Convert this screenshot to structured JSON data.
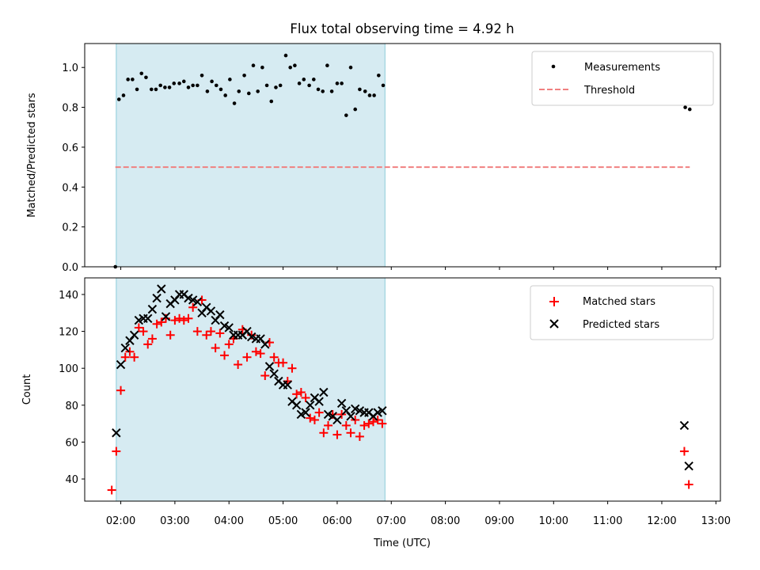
{
  "chart_data": [
    {
      "type": "scatter",
      "title": "Flux total observing time = 4.92 h",
      "xlabel": "",
      "ylabel": "Matched/Predicted stars",
      "xlim": [
        "01:20",
        "13:05"
      ],
      "ylim": [
        0,
        1.12
      ],
      "yticks": [
        "0.0",
        "0.2",
        "0.4",
        "0.6",
        "0.8",
        "1.0"
      ],
      "grid": false,
      "legend_position": "top-right",
      "shaded_interval": [
        "01:55",
        "06:53"
      ],
      "series": [
        {
          "name": "Measurements",
          "marker": "dot",
          "color": "#000000",
          "x": [
            "01:54",
            "01:58",
            "02:03",
            "02:08",
            "02:13",
            "02:18",
            "02:23",
            "02:28",
            "02:34",
            "02:39",
            "02:44",
            "02:49",
            "02:54",
            "02:59",
            "03:05",
            "03:10",
            "03:15",
            "03:20",
            "03:25",
            "03:30",
            "03:36",
            "03:41",
            "03:46",
            "03:51",
            "03:56",
            "04:01",
            "04:06",
            "04:11",
            "04:17",
            "04:22",
            "04:27",
            "04:32",
            "04:37",
            "04:42",
            "04:47",
            "04:52",
            "04:57",
            "05:03",
            "05:08",
            "05:13",
            "05:18",
            "05:23",
            "05:29",
            "05:34",
            "05:39",
            "05:44",
            "05:49",
            "05:54",
            "06:00",
            "06:05",
            "06:10",
            "06:15",
            "06:20",
            "06:25",
            "06:31",
            "06:36",
            "06:41",
            "06:46",
            "06:51",
            "12:26",
            "12:31"
          ],
          "y": [
            0.0,
            0.84,
            0.86,
            0.94,
            0.94,
            0.89,
            0.97,
            0.95,
            0.89,
            0.89,
            0.91,
            0.9,
            0.9,
            0.92,
            0.92,
            0.93,
            0.9,
            0.91,
            0.91,
            0.96,
            0.88,
            0.93,
            0.91,
            0.89,
            0.86,
            0.94,
            0.82,
            0.88,
            0.96,
            0.87,
            1.01,
            0.88,
            1.0,
            0.91,
            0.83,
            0.9,
            0.91,
            1.06,
            1.0,
            1.01,
            0.92,
            0.94,
            0.91,
            0.94,
            0.89,
            0.88,
            1.01,
            0.88,
            0.92,
            0.92,
            0.76,
            1.0,
            0.79,
            0.89,
            0.88,
            0.86,
            0.86,
            0.96,
            0.91,
            0.8,
            0.79
          ]
        },
        {
          "name": "Threshold",
          "marker": "dashed-line",
          "color": "#f08080",
          "x": [
            "01:54",
            "12:31"
          ],
          "y": [
            0.5,
            0.5
          ]
        }
      ]
    },
    {
      "type": "scatter",
      "title": "",
      "xlabel": "Time (UTC)",
      "ylabel": "Count",
      "xlim": [
        "01:20",
        "13:05"
      ],
      "ylim": [
        28,
        149
      ],
      "yticks": [
        "40",
        "60",
        "80",
        "100",
        "120",
        "140"
      ],
      "xticks": [
        "02:00",
        "03:00",
        "04:00",
        "05:00",
        "06:00",
        "07:00",
        "08:00",
        "09:00",
        "10:00",
        "11:00",
        "12:00",
        "13:00"
      ],
      "grid": false,
      "legend_position": "top-right",
      "shaded_interval": [
        "01:55",
        "06:53"
      ],
      "series": [
        {
          "name": "Matched stars",
          "marker": "plus",
          "color": "#ff0000",
          "x": [
            "01:50",
            "01:55",
            "02:00",
            "02:05",
            "02:10",
            "02:15",
            "02:20",
            "02:25",
            "02:30",
            "02:35",
            "02:40",
            "02:45",
            "02:50",
            "02:55",
            "03:00",
            "03:05",
            "03:10",
            "03:15",
            "03:20",
            "03:25",
            "03:30",
            "03:35",
            "03:40",
            "03:45",
            "03:50",
            "03:55",
            "04:00",
            "04:05",
            "04:10",
            "04:15",
            "04:20",
            "04:25",
            "04:30",
            "04:35",
            "04:40",
            "04:45",
            "04:50",
            "04:55",
            "05:00",
            "05:05",
            "05:10",
            "05:15",
            "05:20",
            "05:25",
            "05:30",
            "05:35",
            "05:40",
            "05:45",
            "05:50",
            "05:55",
            "06:00",
            "06:05",
            "06:10",
            "06:15",
            "06:20",
            "06:25",
            "06:30",
            "06:35",
            "06:40",
            "06:45",
            "06:50",
            "12:25",
            "12:30"
          ],
          "y": [
            34,
            55,
            88,
            106,
            109,
            106,
            122,
            120,
            113,
            116,
            124,
            125,
            127,
            118,
            126,
            127,
            126,
            127,
            133,
            120,
            137,
            118,
            120,
            111,
            119,
            107,
            113,
            116,
            102,
            121,
            106,
            118,
            109,
            108,
            96,
            114,
            106,
            103,
            103,
            93,
            100,
            86,
            87,
            84,
            73,
            72,
            76,
            65,
            69,
            75,
            64,
            75,
            69,
            65,
            72,
            63,
            69,
            70,
            71,
            72,
            70,
            55,
            37
          ]
        },
        {
          "name": "Predicted stars",
          "marker": "cross",
          "color": "#000000",
          "x": [
            "01:55",
            "02:00",
            "02:05",
            "02:10",
            "02:15",
            "02:20",
            "02:25",
            "02:30",
            "02:35",
            "02:40",
            "02:45",
            "02:50",
            "02:55",
            "03:00",
            "03:05",
            "03:10",
            "03:15",
            "03:20",
            "03:25",
            "03:30",
            "03:35",
            "03:40",
            "03:45",
            "03:50",
            "03:55",
            "04:00",
            "04:05",
            "04:10",
            "04:15",
            "04:20",
            "04:25",
            "04:30",
            "04:35",
            "04:40",
            "04:45",
            "04:50",
            "04:55",
            "05:00",
            "05:05",
            "05:10",
            "05:15",
            "05:20",
            "05:25",
            "05:30",
            "05:35",
            "05:40",
            "05:45",
            "05:50",
            "05:55",
            "06:00",
            "06:05",
            "06:10",
            "06:15",
            "06:20",
            "06:25",
            "06:30",
            "06:35",
            "06:40",
            "06:45",
            "06:50",
            "12:25",
            "12:30"
          ],
          "y": [
            65,
            102,
            111,
            115,
            118,
            126,
            127,
            127,
            132,
            138,
            143,
            128,
            135,
            137,
            140,
            140,
            138,
            137,
            136,
            130,
            133,
            131,
            126,
            129,
            123,
            122,
            118,
            118,
            118,
            120,
            117,
            116,
            116,
            113,
            101,
            97,
            93,
            91,
            91,
            82,
            80,
            75,
            76,
            80,
            84,
            82,
            87,
            75,
            74,
            72,
            81,
            77,
            74,
            78,
            77,
            76,
            76,
            74,
            76,
            77,
            69,
            47
          ]
        }
      ]
    }
  ]
}
